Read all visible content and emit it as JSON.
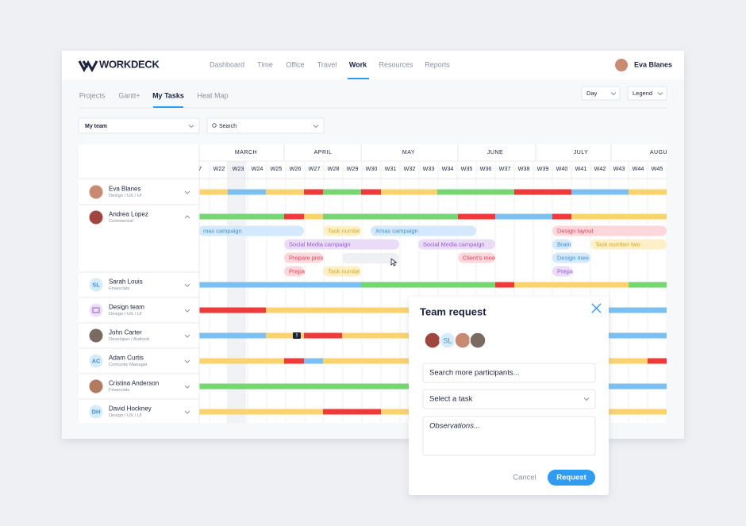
{
  "header": {
    "brand": "WORKDECK",
    "nav": [
      "Dashboard",
      "Time",
      "Office",
      "Travel",
      "Work",
      "Resources",
      "Reports"
    ],
    "user": "Eva Blanes"
  },
  "toolbar": {
    "tabs": [
      "Projects",
      "Gantt+",
      "My Tasks",
      "Heat Map"
    ],
    "view": "Day",
    "legend": "Legend"
  },
  "filters": {
    "team": "My team",
    "search": "Search"
  },
  "gantt": {
    "months": [
      "MARCH",
      "APRIL",
      "MAY",
      "JUNE",
      "JULY",
      "AUGU"
    ],
    "weeks": [
      "7",
      "W22",
      "W23",
      "W24",
      "W25",
      "W26",
      "W27",
      "W28",
      "W29",
      "W30",
      "W31",
      "W32",
      "W33",
      "W34",
      "W35",
      "W36",
      "W37",
      "W38",
      "W39",
      "W40",
      "W41",
      "W42",
      "W43",
      "W44",
      "W45"
    ],
    "people": [
      {
        "name": "Eva Blanes",
        "role": "Design / UX / UI"
      },
      {
        "name": "Andrea Lopez",
        "role": "Commercial"
      },
      {
        "name": "Sarah Louis",
        "role": "Financials",
        "initials": "SL"
      },
      {
        "name": "Design team",
        "role": "Design / UX / UI"
      },
      {
        "name": "John Carter",
        "role": "Developer / Android"
      },
      {
        "name": "Adam Curtis",
        "role": "Comunity Manager",
        "initials": "AC"
      },
      {
        "name": "Cristina Anderson",
        "role": "Financials"
      },
      {
        "name": "David Hockney",
        "role": "Design / UX / UI",
        "initials": "DH"
      }
    ],
    "tasks": [
      "mas campaign",
      "Task numbe",
      "Xmas campaign",
      "Design layout",
      "Social Media campaign",
      "Social Media campaign",
      "Brain",
      "Task number two",
      "Prepare pres",
      "Client's mee",
      "Design mee",
      "Prepa",
      "Task numbe",
      "Prepa"
    ],
    "comment_icon": "!"
  },
  "modal": {
    "title": "Team request",
    "participant_initials": "SL",
    "search_placeholder": "Search more participants...",
    "task_select": "Select a task",
    "observations": "Observations...",
    "cancel": "Cancel",
    "request": "Request"
  }
}
